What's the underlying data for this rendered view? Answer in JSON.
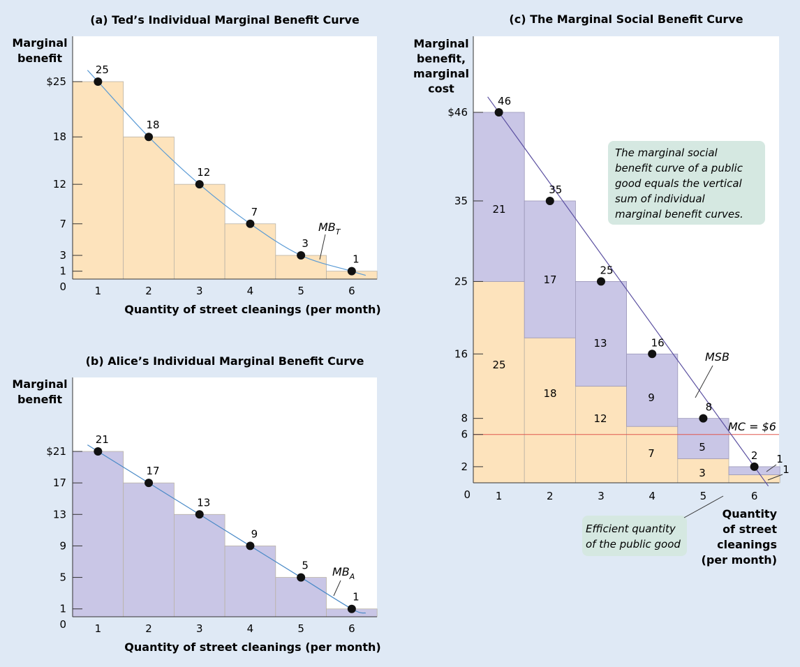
{
  "chart_data": [
    {
      "id": "a",
      "type": "bar",
      "title": "(a) Ted’s Individual Marginal Benefit Curve",
      "ylabel": [
        "Marginal",
        "benefit"
      ],
      "xlabel": "Quantity of street cleanings (per month)",
      "x": [
        1,
        2,
        3,
        4,
        5,
        6
      ],
      "values": [
        25,
        18,
        12,
        7,
        3,
        1
      ],
      "y_ticks": [
        "$25",
        "18",
        "12",
        "7",
        "3",
        "1"
      ],
      "y_tick_values": [
        25,
        18,
        12,
        7,
        3,
        1
      ],
      "x_ticks": [
        "1",
        "2",
        "3",
        "4",
        "5",
        "6"
      ],
      "origin_label": "0",
      "curve_label": "MB",
      "curve_sub": "T",
      "ylim": [
        0,
        30
      ],
      "bar_color": "#fde3bc",
      "curve_color": "#5b9bd5"
    },
    {
      "id": "b",
      "type": "bar",
      "title": "(b) Alice’s Individual Marginal Benefit Curve",
      "ylabel": [
        "Marginal",
        "benefit"
      ],
      "xlabel": "Quantity of street cleanings (per month)",
      "x": [
        1,
        2,
        3,
        4,
        5,
        6
      ],
      "values": [
        21,
        17,
        13,
        9,
        5,
        1
      ],
      "y_ticks": [
        "$21",
        "17",
        "13",
        "9",
        "5",
        "1"
      ],
      "y_tick_values": [
        21,
        17,
        13,
        9,
        5,
        1
      ],
      "x_ticks": [
        "1",
        "2",
        "3",
        "4",
        "5",
        "6"
      ],
      "origin_label": "0",
      "curve_label": "MB",
      "curve_sub": "A",
      "ylim": [
        0,
        25
      ],
      "bar_color": "#c9c6e6",
      "curve_color": "#4a8ac7"
    },
    {
      "id": "c",
      "type": "bar",
      "stacked": true,
      "title": "(c) The Marginal Social Benefit Curve",
      "ylabel": [
        "Marginal",
        "benefit,",
        "marginal",
        "cost"
      ],
      "xlabel": [
        "Quantity",
        "of street",
        "cleanings",
        "(per month)"
      ],
      "x": [
        1,
        2,
        3,
        4,
        5,
        6
      ],
      "series": [
        {
          "name": "Ted",
          "values": [
            25,
            18,
            12,
            7,
            3,
            1
          ]
        },
        {
          "name": "Alice",
          "values": [
            21,
            17,
            13,
            9,
            5,
            1
          ]
        }
      ],
      "totals": [
        46,
        35,
        25,
        16,
        8,
        2
      ],
      "y_ticks": [
        "$46",
        "35",
        "25",
        "16",
        "8",
        "6",
        "2"
      ],
      "y_tick_values": [
        46,
        35,
        25,
        16,
        8,
        6,
        2
      ],
      "x_ticks": [
        "1",
        "2",
        "3",
        "4",
        "5",
        "6"
      ],
      "origin_label": "0",
      "curve_label": "MSB",
      "mc_label": "MC = $6",
      "mc_value": 6,
      "ylim": [
        0,
        52
      ],
      "bottom_color": "#fde3bc",
      "top_color": "#c9c6e6",
      "curve_color": "#5a4fa0",
      "annotation": "The marginal social benefit curve of a public good equals the vertical sum of individual marginal benefit curves.",
      "efficient_label": [
        "Efficient quantity",
        "of the public good"
      ]
    }
  ]
}
